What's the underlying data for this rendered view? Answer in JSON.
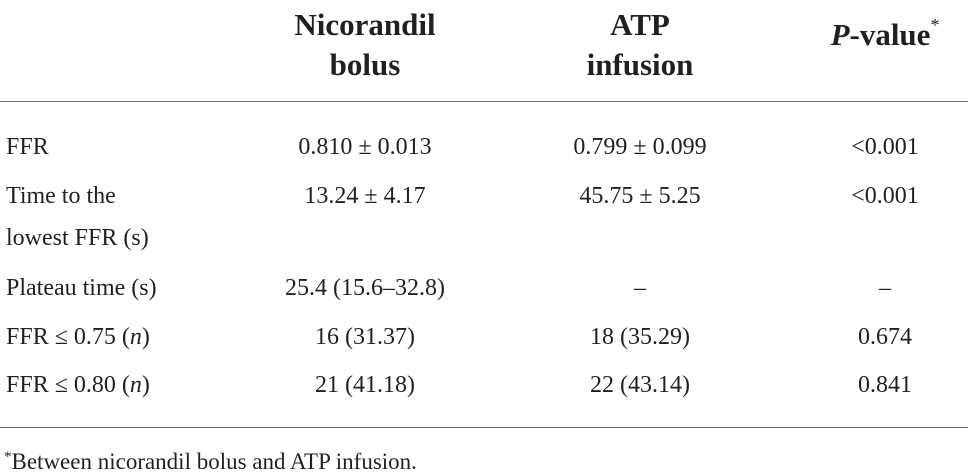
{
  "table": {
    "headers": [
      "",
      "Nicorandil bolus",
      "ATP infusion",
      "P-value*"
    ],
    "header_lines": {
      "col1_line1": "Nicorandil",
      "col1_line2": "bolus",
      "col2_line1": "ATP",
      "col2_line2": "infusion",
      "col3_italic": "P",
      "col3_rest": "-value",
      "col3_mark": "*"
    },
    "rows": [
      {
        "label": "FFR",
        "nicorandil": "0.810 ± 0.013",
        "atp": "0.799 ± 0.099",
        "p": "<0.001"
      },
      {
        "label_line1": "Time to the",
        "label_line2": "lowest FFR (s)",
        "nicorandil": "13.24 ± 4.17",
        "atp": "45.75 ± 5.25",
        "p": "<0.001"
      },
      {
        "label": "Plateau time (s)",
        "nicorandil": "25.4 (15.6–32.8)",
        "atp": "–",
        "p": "–"
      },
      {
        "label_prefix": "FFR ≤ 0.75 (",
        "label_italic": "n",
        "label_suffix": ")",
        "nicorandil": "16 (31.37)",
        "atp": "18 (35.29)",
        "p": "0.674"
      },
      {
        "label_prefix": "FFR ≤ 0.80 (",
        "label_italic": "n",
        "label_suffix": ")",
        "nicorandil": "21 (41.18)",
        "atp": "22 (43.14)",
        "p": "0.841"
      }
    ]
  },
  "footnote": {
    "mark": "*",
    "text": "Between nicorandil bolus and ATP infusion."
  }
}
